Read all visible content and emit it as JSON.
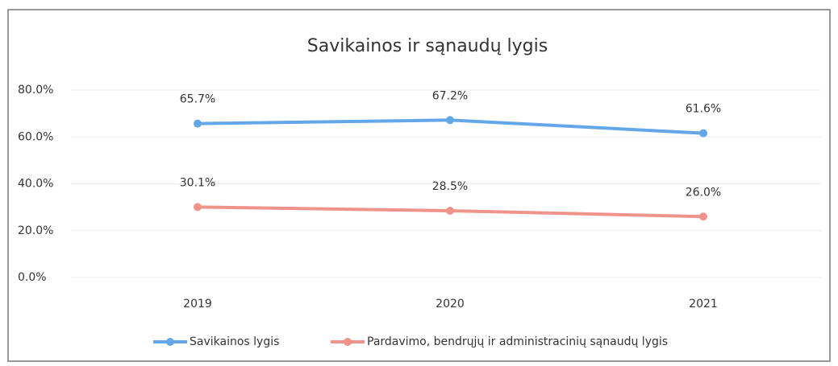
{
  "chart_data": {
    "type": "line",
    "title": "Savikainos ir sąnaudų lygis",
    "categories": [
      "2019",
      "2020",
      "2021"
    ],
    "series": [
      {
        "name": "Savikainos lygis",
        "color": "#63a7e8",
        "values": [
          65.7,
          67.2,
          61.6
        ],
        "value_labels": [
          "65.7%",
          "67.2%",
          "61.6%"
        ]
      },
      {
        "name": "Pardavimo, bendrųjų ir administracinių sąnaudų lygis",
        "color": "#f0938a",
        "values": [
          30.1,
          28.5,
          26.0
        ],
        "value_labels": [
          "30.1%",
          "28.5%",
          "26.0%"
        ]
      }
    ],
    "ylim": [
      0,
      80
    ],
    "yticks": [
      {
        "value": 0,
        "label": "0.0%"
      },
      {
        "value": 20,
        "label": "20.0%"
      },
      {
        "value": 40,
        "label": "40.0%"
      },
      {
        "value": 60,
        "label": "60.0%"
      },
      {
        "value": 80,
        "label": "80.0%"
      }
    ],
    "grid": true,
    "legend": "bottom"
  }
}
